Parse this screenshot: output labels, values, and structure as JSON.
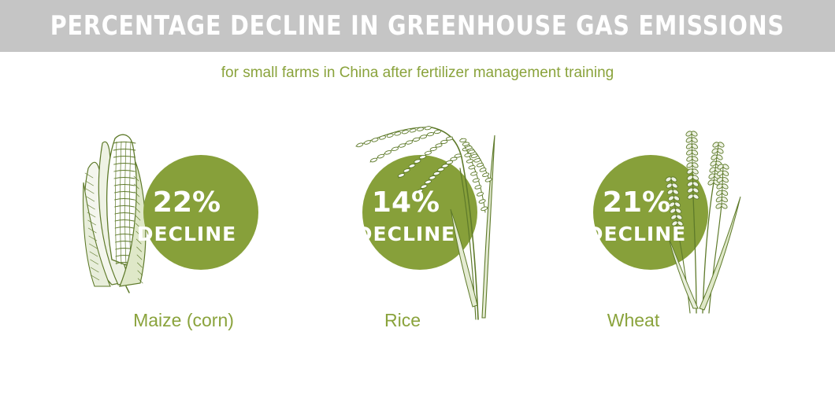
{
  "header": {
    "title": "PERCENTAGE DECLINE IN GREENHOUSE GAS EMISSIONS",
    "subtitle": "for small farms in China after fertilizer management training"
  },
  "colors": {
    "accent": "#8aa33c",
    "circle": "#87a03a",
    "title_bar": "#c5c5c5",
    "illustration": "#5e7a2a"
  },
  "chart_data": {
    "type": "bar",
    "title": "PERCENTAGE DECLINE IN GREENHOUSE GAS EMISSIONS",
    "subtitle": "for small farms in China after fertilizer management training",
    "categories": [
      "Maize (corn)",
      "Rice",
      "Wheat"
    ],
    "values": [
      22,
      14,
      21
    ],
    "value_labels": [
      "22%",
      "14%",
      "21%"
    ],
    "value_suffix": "DECLINE",
    "icons": [
      "maize-icon",
      "rice-icon",
      "wheat-icon"
    ]
  }
}
